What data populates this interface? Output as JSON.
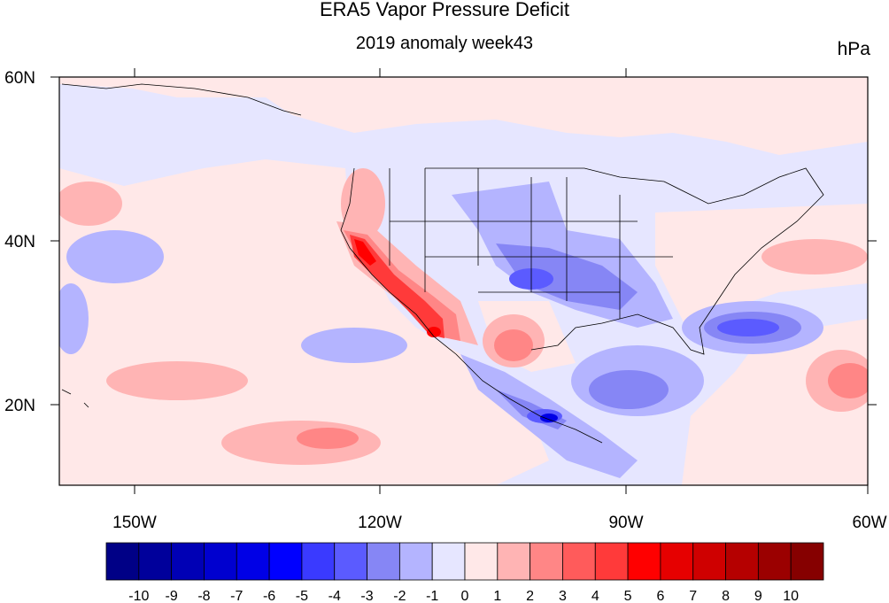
{
  "title": "ERA5 Vapor Pressure Deficit",
  "subtitle": "2019 anomaly week43",
  "units": "hPa",
  "map": {
    "lon_labels": [
      "150W",
      "120W",
      "90W",
      "60W"
    ],
    "lat_labels": [
      "60N",
      "40N",
      "20N"
    ],
    "lon_range": [
      -159,
      -60
    ],
    "lat_range": [
      10,
      60
    ]
  },
  "colorbar": {
    "labels": [
      "-10",
      "-9",
      "-8",
      "-7",
      "-6",
      "-5",
      "-4",
      "-3",
      "-2",
      "-1",
      "0",
      "1",
      "2",
      "3",
      "4",
      "5",
      "6",
      "7",
      "8",
      "9",
      "10"
    ],
    "colors": [
      "#000086",
      "#00009b",
      "#0000b5",
      "#0000cf",
      "#0000e6",
      "#0000ff",
      "#3a3aff",
      "#5b5bff",
      "#8686f5",
      "#b4b4ff",
      "#e6e6ff",
      "#ffe8e8",
      "#ffb4b4",
      "#ff8686",
      "#ff5b5b",
      "#ff3a3a",
      "#ff0000",
      "#e60000",
      "#cf0000",
      "#b50000",
      "#9b0000",
      "#860000"
    ]
  }
}
